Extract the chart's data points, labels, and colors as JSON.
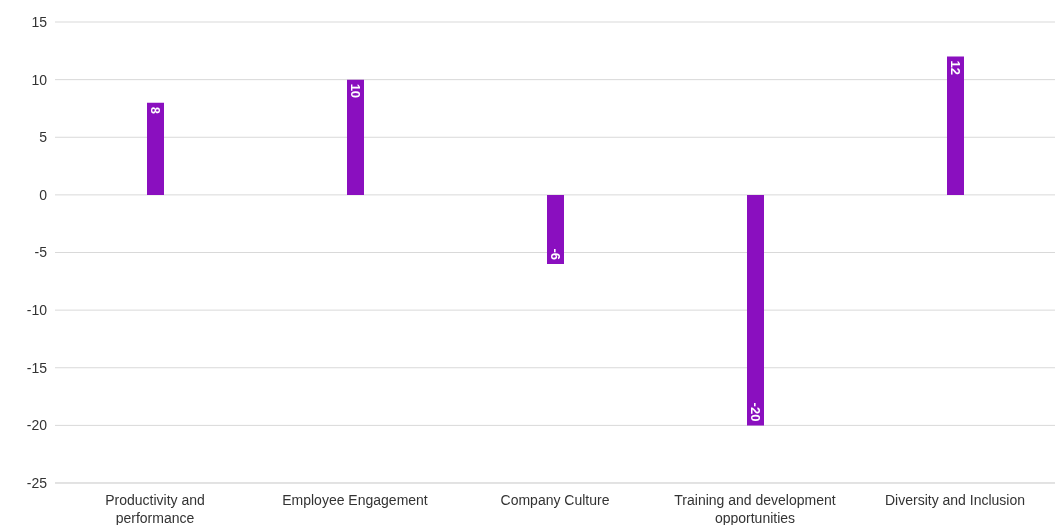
{
  "chart_data": {
    "type": "bar",
    "categories": [
      "Productivity and performance",
      "Employee Engagement",
      "Company Culture",
      "Training and development opportunities",
      "Diversity and Inclusion"
    ],
    "values": [
      8,
      10,
      -6,
      -20,
      12
    ],
    "color": "#8a0fbf",
    "ylim": [
      -25,
      15
    ],
    "yticks": [
      -25,
      -20,
      -15,
      -10,
      -5,
      0,
      5,
      10,
      15
    ],
    "grid": "y",
    "data_labels": true
  }
}
